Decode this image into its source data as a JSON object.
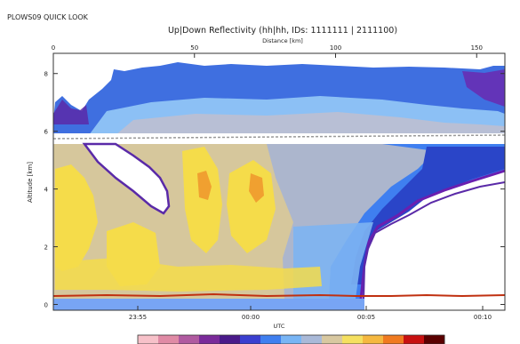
{
  "page": {
    "header_left": "PLOWS09 QUICK LOOK"
  },
  "chart_data": {
    "type": "heatmap",
    "title": "Up|Down Reflectivity (hh|hh, IDs: 1111111 | 2111100)",
    "x_top_label": "Distance [km]",
    "x_top_ticks": [
      "0",
      "50",
      "100",
      "150"
    ],
    "x_top_range": [
      0,
      160
    ],
    "xlabel": "UTC",
    "x_bottom_ticks": [
      "23:55",
      "00:00",
      "00:05",
      "00:10"
    ],
    "ylabel": "Altitude [km]",
    "y_ticks": [
      "0",
      "2",
      "4",
      "6",
      "8"
    ],
    "ylim": [
      -0.2,
      8.7
    ],
    "aircraft_altitude_km": 5.75,
    "grid": false,
    "colorbar_colors": [
      "#f7c1c9",
      "#e08aa5",
      "#b05aa0",
      "#7a2a9a",
      "#4a1a8a",
      "#3a3fd0",
      "#3f7ff0",
      "#78b5f5",
      "#a9b9d8",
      "#d8c8a0",
      "#f5e060",
      "#f5b840",
      "#f07a20",
      "#c81010",
      "#5a0000"
    ]
  }
}
